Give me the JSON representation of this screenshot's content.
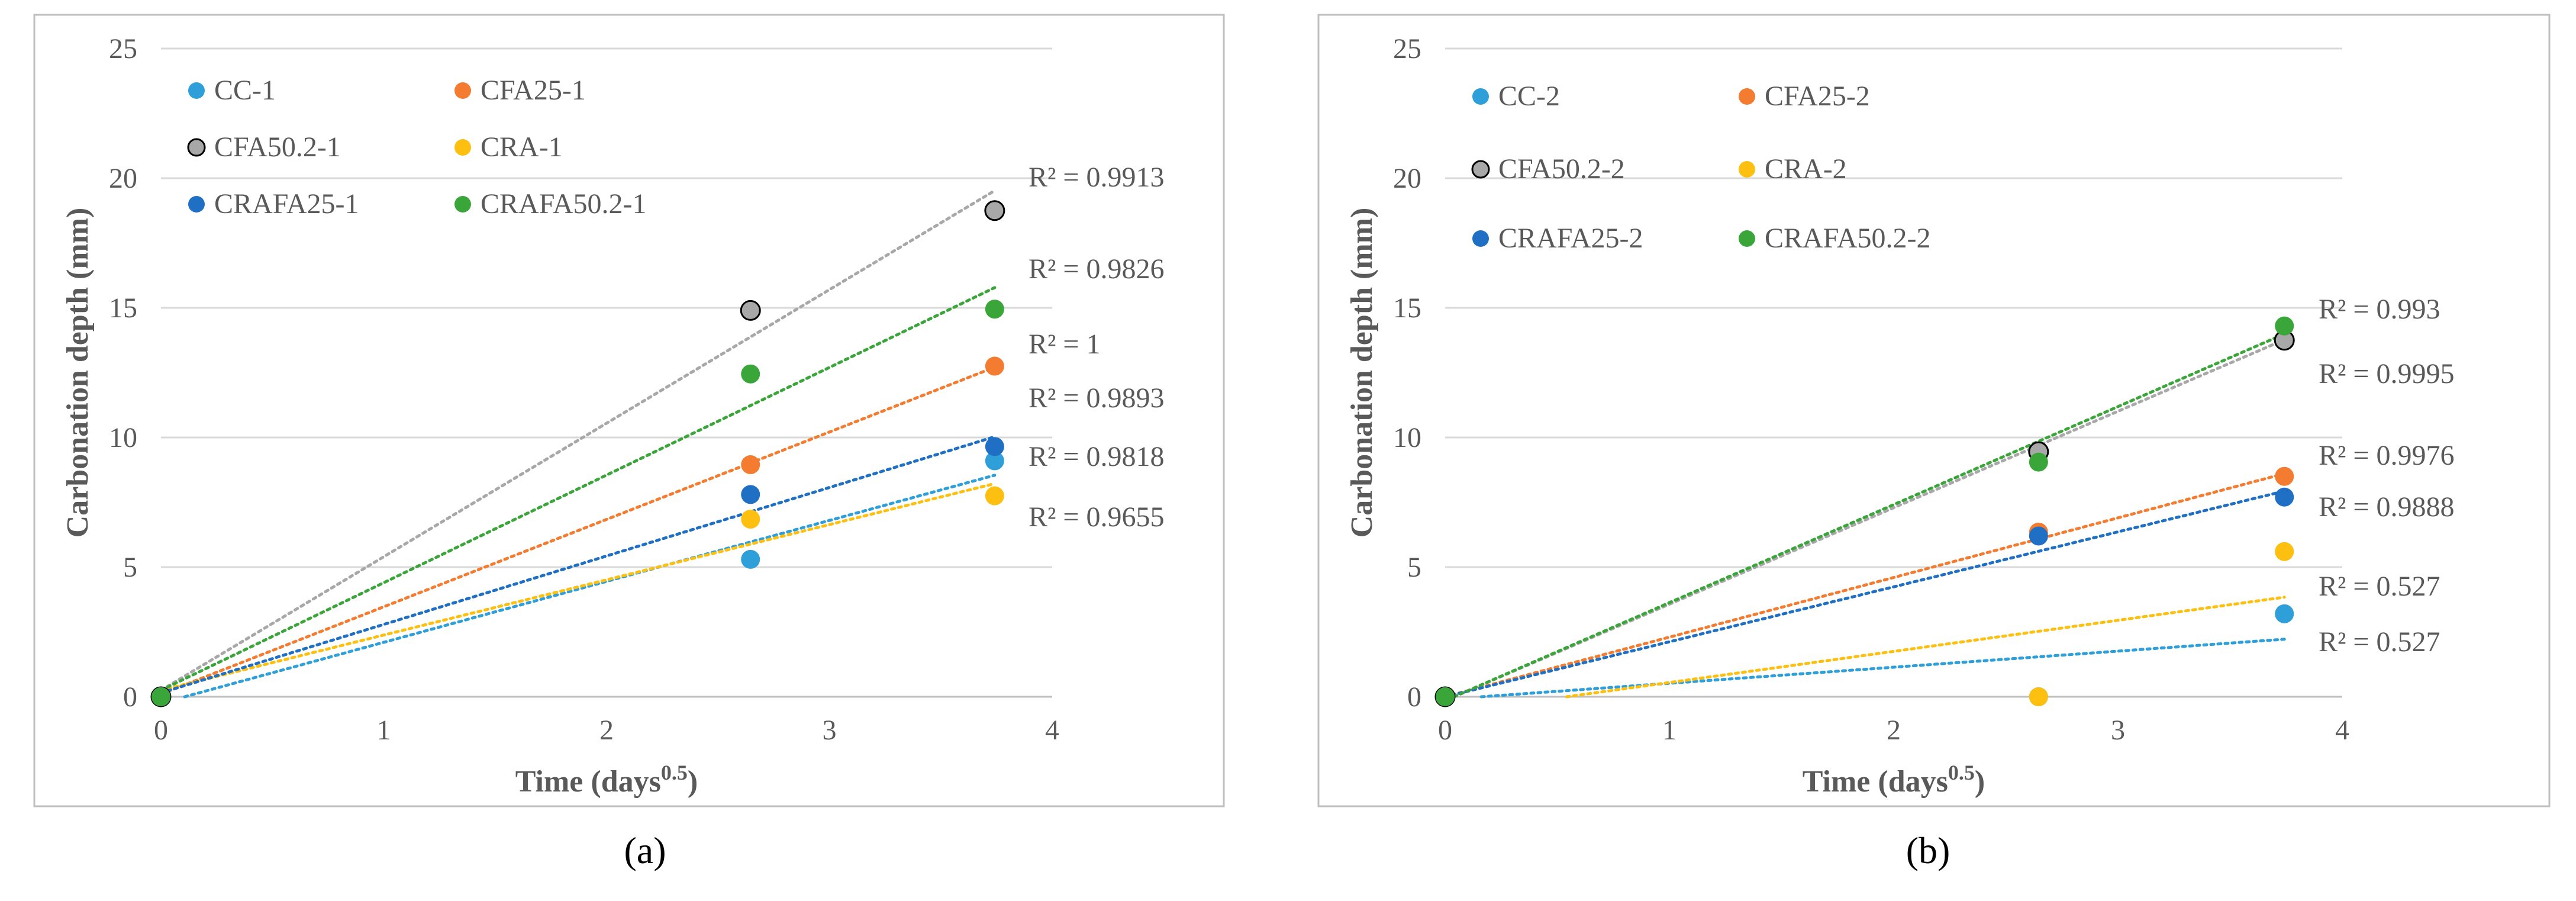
{
  "chart_data": [
    {
      "type": "scatter",
      "panel_label": "(a)",
      "xlabel": "Time (days",
      "xlabel_sup": "0.5",
      "xlabel_close": ")",
      "ylabel": "Carbonation depth (mm)",
      "xlim": [
        0,
        4
      ],
      "ylim": [
        0,
        25
      ],
      "xticks": [
        0,
        1,
        2,
        3,
        4
      ],
      "yticks": [
        0,
        5,
        10,
        15,
        20,
        25
      ],
      "x": [
        0,
        2.646,
        3.742
      ],
      "series": [
        {
          "name": "CC-1",
          "color": "#2e9fd9",
          "marker_edge": "none",
          "values": [
            0,
            5.3,
            9.1
          ],
          "trend_slope": 2.35,
          "trend_intercept": -0.25,
          "r2_label": "R² = 0.9818"
        },
        {
          "name": "CFA25-1",
          "color": "#f47c30",
          "marker_edge": "none",
          "values": [
            0,
            8.95,
            12.75
          ],
          "trend_slope": 3.37,
          "trend_intercept": 0.1,
          "r2_label": "R² = 1"
        },
        {
          "name": "CFA50.2-1",
          "color": "#a8a8a8",
          "marker_edge": "#000000",
          "values": [
            0,
            14.9,
            18.75
          ],
          "trend_slope": 5.15,
          "trend_intercept": 0.25,
          "r2_label": "R² = 0.9913"
        },
        {
          "name": "CRA-1",
          "color": "#fdc010",
          "marker_edge": "none",
          "values": [
            0,
            6.85,
            7.75
          ],
          "trend_slope": 2.13,
          "trend_intercept": 0.25,
          "r2_label": "R² = 0.9655"
        },
        {
          "name": "CRAFA25-1",
          "color": "#1f6fc4",
          "marker_edge": "none",
          "values": [
            0,
            7.8,
            9.65
          ],
          "trend_slope": 2.64,
          "trend_intercept": 0.15,
          "r2_label": "R² = 0.9893"
        },
        {
          "name": "CRAFA50.2-1",
          "color": "#3aa63a",
          "marker_edge": "none",
          "values": [
            0,
            12.45,
            14.95
          ],
          "trend_slope": 4.15,
          "trend_intercept": 0.25,
          "r2_label": "R² = 0.9826"
        }
      ],
      "r2_order": [
        2,
        5,
        1,
        4,
        0,
        3
      ]
    },
    {
      "type": "scatter",
      "panel_label": "(b)",
      "xlabel": "Time (days",
      "xlabel_sup": "0.5",
      "xlabel_close": ")",
      "ylabel": "Carbonation depth (mm)",
      "xlim": [
        0,
        4
      ],
      "ylim": [
        0,
        25
      ],
      "xticks": [
        0,
        1,
        2,
        3,
        4
      ],
      "yticks": [
        0,
        5,
        10,
        15,
        20,
        25
      ],
      "x": [
        0,
        2.646,
        3.742
      ],
      "series": [
        {
          "name": "CC-2",
          "color": "#2e9fd9",
          "marker_edge": "none",
          "values": [
            0,
            0,
            3.2
          ],
          "trend_slope": 0.62,
          "trend_intercept": -0.1,
          "r2_label": "R² = 0.527"
        },
        {
          "name": "CFA25-2",
          "color": "#f47c30",
          "marker_edge": "none",
          "values": [
            0,
            6.35,
            8.5
          ],
          "trend_slope": 2.3,
          "trend_intercept": 0,
          "r2_label": "R² = 0.9976"
        },
        {
          "name": "CFA50.2-2",
          "color": "#a8a8a8",
          "marker_edge": "#000000",
          "values": [
            0,
            9.45,
            13.75
          ],
          "trend_slope": 3.72,
          "trend_intercept": -0.15,
          "r2_label": "R² = 0.9995"
        },
        {
          "name": "CRA-2",
          "color": "#fdc010",
          "marker_edge": "none",
          "values": [
            0,
            0,
            5.6
          ],
          "trend_slope": 1.2,
          "trend_intercept": -0.65,
          "r2_label": "R² = 0.527"
        },
        {
          "name": "CRAFA25-2",
          "color": "#1f6fc4",
          "marker_edge": "none",
          "values": [
            0,
            6.2,
            7.7
          ],
          "trend_slope": 2.12,
          "trend_intercept": 0,
          "r2_label": "R² = 0.9888"
        },
        {
          "name": "CRAFA50.2-2",
          "color": "#3aa63a",
          "marker_edge": "none",
          "values": [
            0,
            9.05,
            14.3
          ],
          "trend_slope": 3.78,
          "trend_intercept": -0.15,
          "r2_label": "R² = 0.993"
        }
      ],
      "r2_order": [
        5,
        2,
        1,
        4,
        3,
        0
      ]
    }
  ]
}
